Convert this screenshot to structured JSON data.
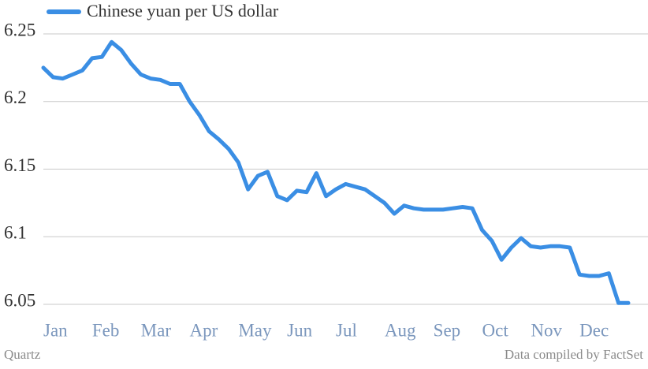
{
  "chart_data": {
    "type": "line",
    "source_left": "Quartz",
    "source_right": "Data compiled by FactSet",
    "categories": [
      "Jan",
      null,
      null,
      null,
      null,
      "Feb",
      null,
      null,
      null,
      null,
      "Mar",
      null,
      null,
      null,
      null,
      "Apr",
      null,
      null,
      null,
      null,
      "May",
      null,
      null,
      null,
      null,
      "Jun",
      null,
      null,
      null,
      null,
      "Jul",
      null,
      null,
      null,
      null,
      "Aug",
      null,
      null,
      null,
      null,
      "Sep",
      null,
      null,
      null,
      null,
      "Oct",
      null,
      null,
      null,
      null,
      "Nov",
      null,
      null,
      null,
      null,
      "Dec",
      null,
      null,
      null,
      null,
      null
    ],
    "series": [
      {
        "name": "Chinese yuan per US dollar",
        "color": "#3a8ee4",
        "values": [
          6.225,
          6.218,
          6.217,
          6.22,
          6.223,
          6.232,
          6.233,
          6.244,
          6.238,
          6.228,
          6.22,
          6.217,
          6.216,
          6.213,
          6.213,
          6.2,
          6.19,
          6.178,
          6.172,
          6.165,
          6.155,
          6.135,
          6.145,
          6.148,
          6.13,
          6.127,
          6.134,
          6.133,
          6.147,
          6.13,
          6.135,
          6.139,
          6.137,
          6.135,
          6.13,
          6.125,
          6.117,
          6.123,
          6.121,
          6.12,
          6.12,
          6.12,
          6.121,
          6.122,
          6.121,
          6.105,
          6.097,
          6.083,
          6.092,
          6.099,
          6.093,
          6.092,
          6.093,
          6.093,
          6.092,
          6.072,
          6.071,
          6.071,
          6.073,
          6.051,
          6.051
        ]
      }
    ],
    "ylim": [
      6.05,
      6.25
    ],
    "yticks": [
      6.05,
      6.1,
      6.15,
      6.2,
      6.25
    ],
    "grid": true
  }
}
